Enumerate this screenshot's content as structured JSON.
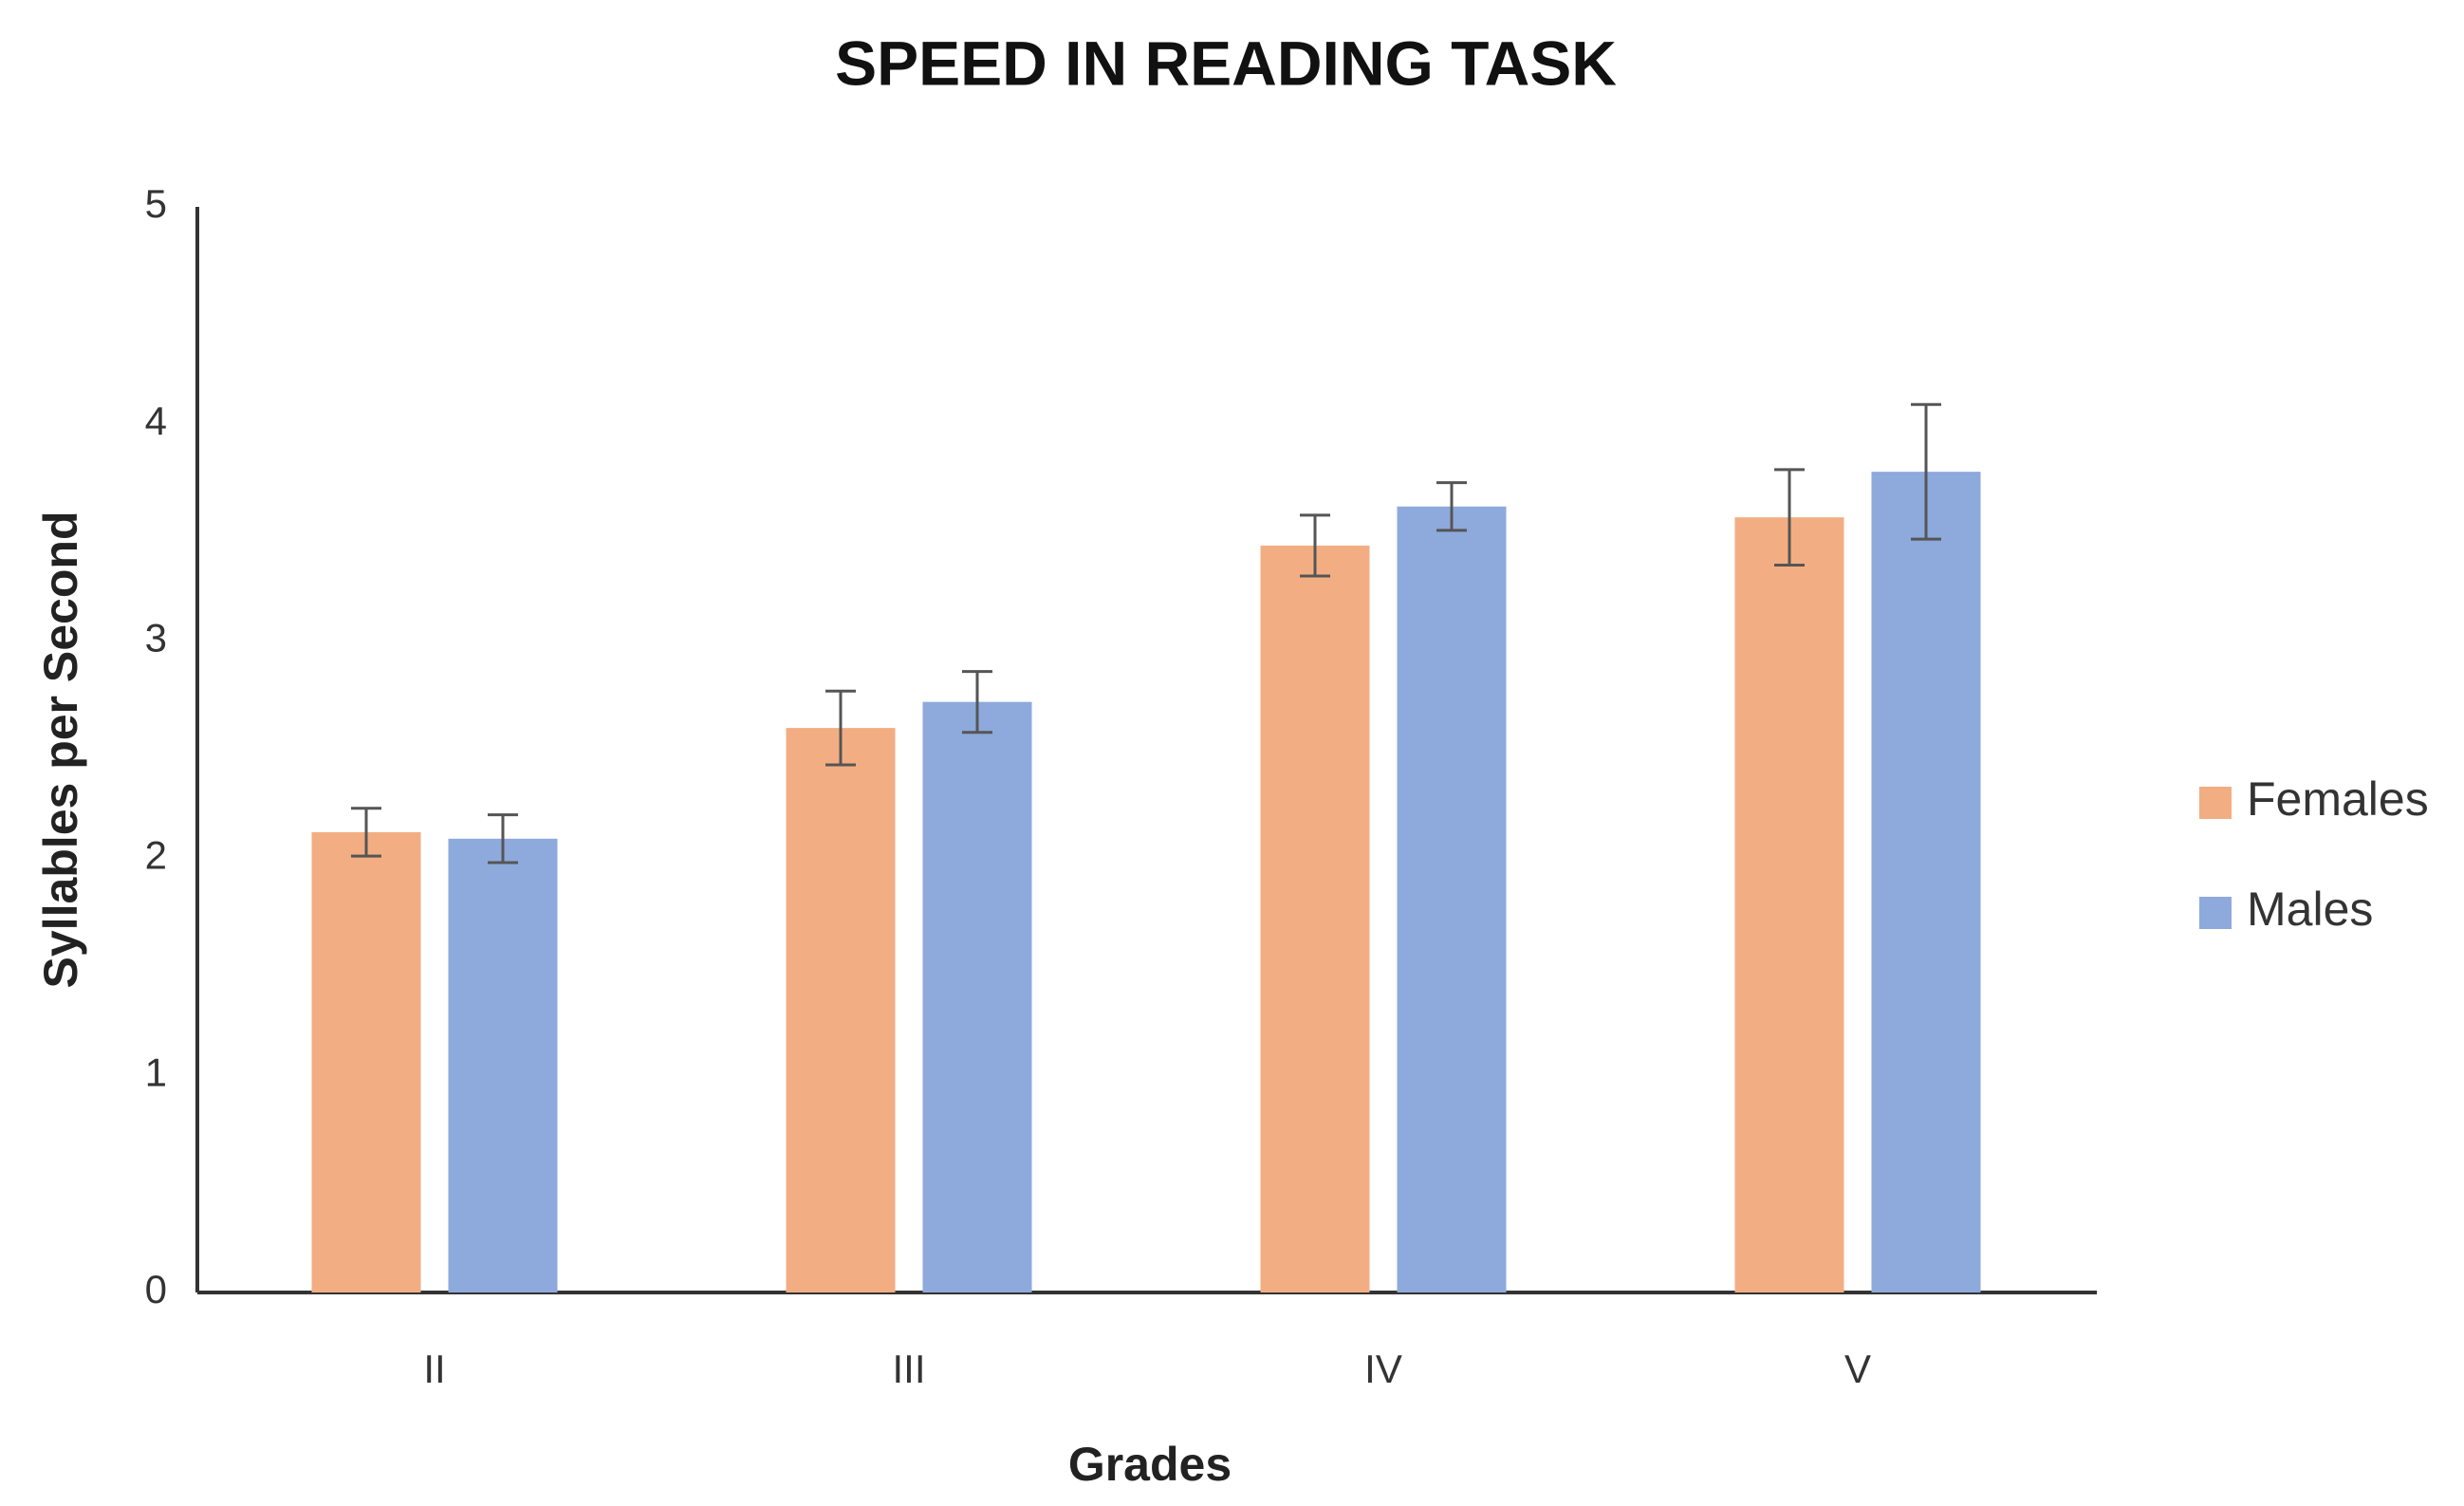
{
  "chart_data": {
    "type": "bar",
    "title": "SPEED IN READING TASK",
    "x_label": "Grades",
    "y_label": "Syllables per Second",
    "categories": [
      "II",
      "III",
      "IV",
      "V"
    ],
    "series": [
      {
        "name": "Females",
        "color": "#f2ae82",
        "values": [
          2.12,
          2.6,
          3.44,
          3.57
        ],
        "errors": [
          0.11,
          0.17,
          0.14,
          0.22
        ]
      },
      {
        "name": "Males",
        "color": "#8eaadc",
        "values": [
          2.09,
          2.72,
          3.62,
          3.78
        ],
        "errors": [
          0.11,
          0.14,
          0.11,
          0.31
        ]
      }
    ],
    "ylim": [
      0,
      5
    ],
    "yticks": [
      0,
      1,
      2,
      3,
      4,
      5
    ],
    "legend": "right"
  }
}
